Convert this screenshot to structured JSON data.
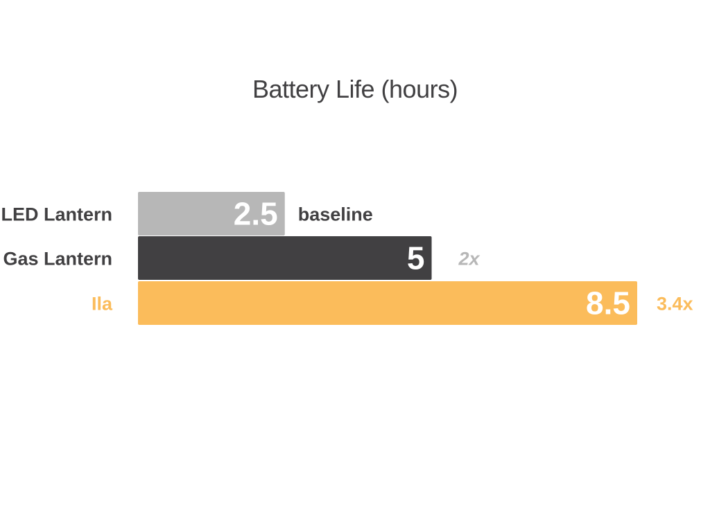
{
  "chart_data": {
    "type": "bar",
    "orientation": "horizontal",
    "title": "Battery Life (hours)",
    "xlabel": "",
    "ylabel": "",
    "xlim": [
      0,
      10
    ],
    "grid": false,
    "legend": "none",
    "categories": [
      "LED Lantern",
      "Gas Lantern",
      "Ila"
    ],
    "values": [
      2.5,
      5,
      8.5
    ],
    "value_labels": [
      "2.5",
      "5",
      "8.5"
    ],
    "annotations": [
      "baseline",
      "2x",
      "3.4x"
    ],
    "bar_colors": [
      "#b7b7b7",
      "#414042",
      "#fbbc5b"
    ],
    "category_label_colors": [
      "#414042",
      "#414042",
      "#fbbc5b"
    ],
    "annotation_colors": [
      "#414042",
      "#b7b7b7",
      "#fbbc5b"
    ],
    "annotation_italic": [
      false,
      true,
      false
    ],
    "value_label_color": "#ffffff"
  }
}
